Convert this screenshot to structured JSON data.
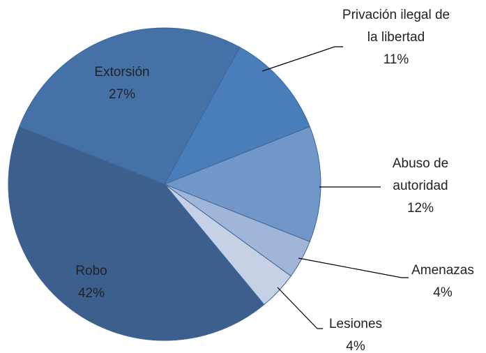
{
  "chart_data": {
    "type": "pie",
    "categories": [
      "Privación ilegal de la libertad",
      "Abuso de autoridad",
      "Amenazas",
      "Lesiones",
      "Robo",
      "Extorsión"
    ],
    "values": [
      11,
      12,
      4,
      4,
      42,
      27
    ],
    "value_labels": [
      "11%",
      "12%",
      "4%",
      "4%",
      "42%",
      "27%"
    ],
    "colors": [
      "#4a7ebb",
      "#7196c8",
      "#a1b5d9",
      "#c6d1e6",
      "#3d5f8e",
      "#4571a7"
    ]
  }
}
